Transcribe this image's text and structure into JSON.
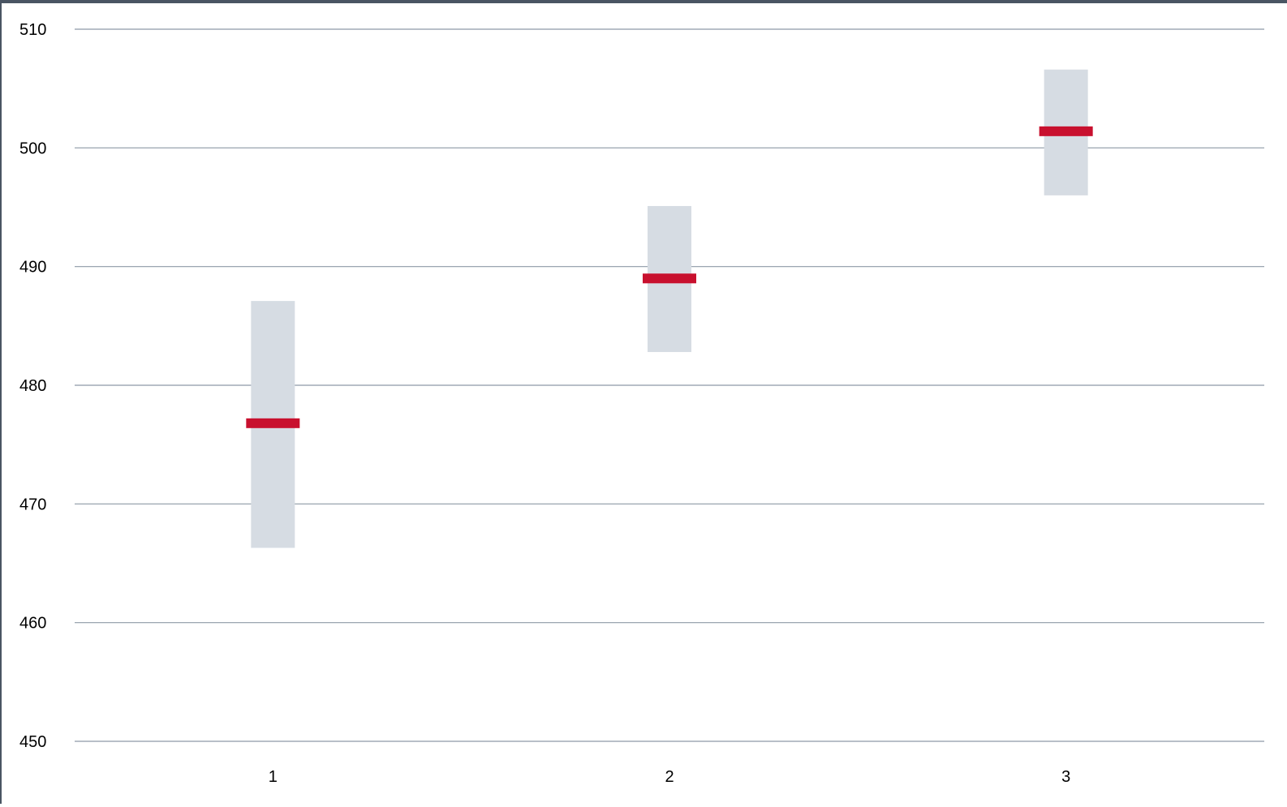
{
  "chart_data": {
    "type": "bar",
    "title": "",
    "xlabel": "",
    "ylabel": "",
    "categories": [
      "1",
      "2",
      "3"
    ],
    "ylim": [
      450,
      510
    ],
    "yticks": [
      "450",
      "460",
      "470",
      "480",
      "490",
      "500",
      "510"
    ],
    "grid": true,
    "legend": "none",
    "series": [
      {
        "kind": "range",
        "low": [
          466.3,
          482.8,
          496.0
        ],
        "high": [
          487.1,
          495.1,
          506.6
        ],
        "color": "#d6dce3"
      },
      {
        "kind": "marker",
        "values": [
          476.8,
          489.0,
          501.4
        ],
        "color": "#c8102e"
      }
    ]
  }
}
